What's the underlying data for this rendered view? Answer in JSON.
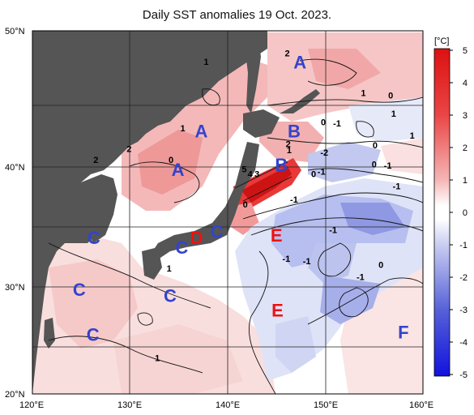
{
  "title": "Daily SST anomalies 19 Oct. 2023.",
  "map": {
    "lat_ticks": [
      "20°N",
      "30°N",
      "40°N",
      "50°N"
    ],
    "lon_ticks": [
      "120°E",
      "130°E",
      "140°E",
      "150°E",
      "160°E"
    ],
    "lon_range": [
      120,
      160
    ],
    "lat_range": [
      20,
      50
    ]
  },
  "colorbar": {
    "unit": "[°C]",
    "ticks": [
      "5",
      "4",
      "3",
      "2",
      "1",
      "0",
      "-1",
      "-2",
      "-3",
      "-4",
      "-5"
    ],
    "min": -5,
    "max": 5,
    "colors": {
      "warm_strong": "#e32222",
      "warm_mid": "#f08a8a",
      "warm_light": "#f8d0d0",
      "neutral": "#ffffff",
      "cool_light": "#d3d8f2",
      "cool_mid": "#8e97e0",
      "cool_strong": "#1c1cdd",
      "land": "#555555"
    }
  },
  "contour_labels": [
    {
      "text": "2",
      "lon": 146.1,
      "lat": 47.9
    },
    {
      "text": "1",
      "lon": 137.8,
      "lat": 47.2
    },
    {
      "text": "1",
      "lon": 153.9,
      "lat": 44.6
    },
    {
      "text": "0",
      "lon": 156.7,
      "lat": 44.4
    },
    {
      "text": "1",
      "lon": 157.0,
      "lat": 42.9
    },
    {
      "text": "0",
      "lon": 149.8,
      "lat": 42.2
    },
    {
      "text": "-1",
      "lon": 151.2,
      "lat": 42.1
    },
    {
      "text": "1",
      "lon": 135.4,
      "lat": 41.7
    },
    {
      "text": "1",
      "lon": 158.9,
      "lat": 41.1
    },
    {
      "text": "2",
      "lon": 129.9,
      "lat": 40.0
    },
    {
      "text": "2",
      "lon": 146.2,
      "lat": 40.4
    },
    {
      "text": "0",
      "lon": 155.1,
      "lat": 40.3
    },
    {
      "text": "1",
      "lon": 146.3,
      "lat": 39.9
    },
    {
      "text": "-2",
      "lon": 149.9,
      "lat": 39.7
    },
    {
      "text": "2",
      "lon": 126.5,
      "lat": 39.1
    },
    {
      "text": "0",
      "lon": 134.2,
      "lat": 39.1
    },
    {
      "text": "0",
      "lon": 155.0,
      "lat": 38.7
    },
    {
      "text": "-1",
      "lon": 156.4,
      "lat": 38.6
    },
    {
      "text": "5",
      "lon": 141.7,
      "lat": 38.3
    },
    {
      "text": "4",
      "lon": 142.3,
      "lat": 37.9
    },
    {
      "text": "3",
      "lon": 143.0,
      "lat": 37.9
    },
    {
      "text": "0",
      "lon": 148.8,
      "lat": 37.9
    },
    {
      "text": "-1",
      "lon": 149.6,
      "lat": 38.1
    },
    {
      "text": "-1",
      "lon": 157.3,
      "lat": 36.9
    },
    {
      "text": "-1",
      "lon": 146.8,
      "lat": 35.8
    },
    {
      "text": "0",
      "lon": 141.8,
      "lat": 35.4
    },
    {
      "text": "-1",
      "lon": 150.8,
      "lat": 33.3
    },
    {
      "text": "-1",
      "lon": 146.0,
      "lat": 30.9
    },
    {
      "text": "-1",
      "lon": 148.1,
      "lat": 30.7
    },
    {
      "text": "0",
      "lon": 155.7,
      "lat": 30.4
    },
    {
      "text": "1",
      "lon": 134.0,
      "lat": 30.1
    },
    {
      "text": "-1",
      "lon": 153.6,
      "lat": 29.4
    },
    {
      "text": "1",
      "lon": 132.8,
      "lat": 22.7
    }
  ],
  "region_labels": [
    {
      "text": "A",
      "lon": 147.4,
      "lat": 46.9,
      "color": "#3344cc"
    },
    {
      "text": "A",
      "lon": 137.3,
      "lat": 41.2,
      "color": "#3344cc"
    },
    {
      "text": "A",
      "lon": 134.9,
      "lat": 38.0,
      "color": "#3344cc"
    },
    {
      "text": "B",
      "lon": 146.8,
      "lat": 41.2,
      "color": "#3344cc"
    },
    {
      "text": "B",
      "lon": 145.5,
      "lat": 38.4,
      "color": "#3344cc"
    },
    {
      "text": "C",
      "lon": 126.3,
      "lat": 32.4,
      "color": "#3344cc"
    },
    {
      "text": "C",
      "lon": 138.9,
      "lat": 32.9,
      "color": "#3344cc"
    },
    {
      "text": "C",
      "lon": 135.3,
      "lat": 31.6,
      "color": "#3344cc"
    },
    {
      "text": "C",
      "lon": 124.8,
      "lat": 28.1,
      "color": "#3344cc"
    },
    {
      "text": "C",
      "lon": 134.1,
      "lat": 27.6,
      "color": "#3344cc"
    },
    {
      "text": "C",
      "lon": 126.2,
      "lat": 24.4,
      "color": "#3344cc"
    },
    {
      "text": "D",
      "lon": 136.8,
      "lat": 32.4,
      "color": "#ee1111"
    },
    {
      "text": "E",
      "lon": 145.0,
      "lat": 32.6,
      "color": "#ee1111"
    },
    {
      "text": "E",
      "lon": 145.1,
      "lat": 26.4,
      "color": "#ee1111"
    },
    {
      "text": "F",
      "lon": 158.0,
      "lat": 24.6,
      "color": "#3344cc"
    }
  ]
}
